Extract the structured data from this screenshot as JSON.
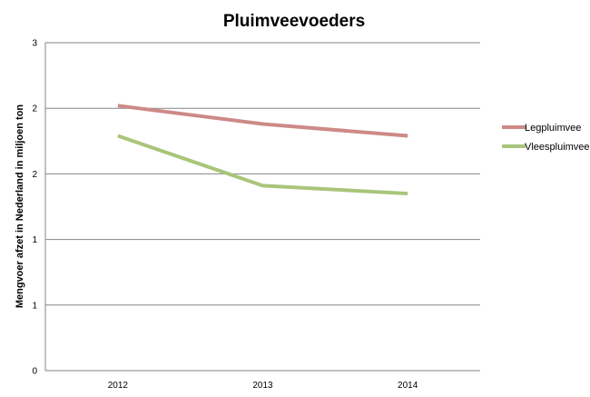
{
  "chart_data": {
    "type": "line",
    "title": "Pluimveevoeders",
    "xlabel": "",
    "ylabel": "Mengvoer afzet in Nederland in miljoen ton",
    "categories": [
      "2012",
      "2013",
      "2014"
    ],
    "y_tick_labels": [
      "0",
      "1",
      "1",
      "2",
      "2",
      "3"
    ],
    "ylim": [
      0,
      2.5
    ],
    "grid": true,
    "legend_position": "right",
    "series": [
      {
        "name": "Legpluimvee",
        "color": "#cd8a86",
        "values": [
          2.02,
          1.88,
          1.79
        ]
      },
      {
        "name": "Vleespluimvee",
        "color": "#a9c57a",
        "values": [
          1.79,
          1.41,
          1.35
        ]
      }
    ]
  }
}
